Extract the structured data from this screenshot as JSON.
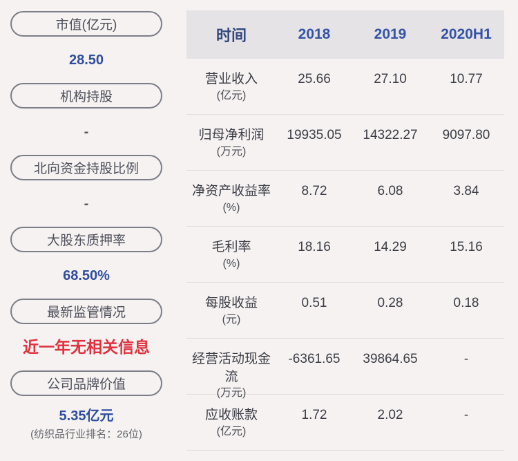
{
  "colors": {
    "page_bg": "#f5f2f1",
    "header_bg": "#e5e3e6",
    "accent_blue": "#2f4d9e",
    "alert_red": "#e0313f",
    "pill_border": "#7d7d88"
  },
  "sidebar": {
    "items": [
      {
        "label": "市值(亿元)",
        "value": "28.50",
        "style": "blue"
      },
      {
        "label": "机构持股",
        "value": "-",
        "style": "dash"
      },
      {
        "label": "北向资金持股比例",
        "value": "-",
        "style": "dash"
      },
      {
        "label": "大股东质押率",
        "value": "68.50%",
        "style": "blue"
      },
      {
        "label": "最新监管情况",
        "value": "近一年无相关信息",
        "style": "red"
      },
      {
        "label": "公司品牌价值",
        "value": "5.35亿元",
        "style": "blue",
        "note": "(纺织品行业排名：26位)"
      }
    ]
  },
  "table": {
    "header": {
      "time_label": "时间",
      "columns": [
        "2018",
        "2019",
        "2020H1"
      ]
    },
    "rows": [
      {
        "name": "营业收入",
        "unit": "(亿元)",
        "values": [
          "25.66",
          "27.10",
          "10.77"
        ]
      },
      {
        "name": "归母净利润",
        "unit": "(万元)",
        "values": [
          "19935.05",
          "14322.27",
          "9097.80"
        ]
      },
      {
        "name": "净资产收益率",
        "unit": "(%)",
        "values": [
          "8.72",
          "6.08",
          "3.84"
        ]
      },
      {
        "name": "毛利率",
        "unit": "(%)",
        "values": [
          "18.16",
          "14.29",
          "15.16"
        ]
      },
      {
        "name": "每股收益",
        "unit": "(元)",
        "values": [
          "0.51",
          "0.28",
          "0.18"
        ]
      },
      {
        "name": "经营活动现金流",
        "unit": "(万元)",
        "values": [
          "-6361.65",
          "39864.65",
          "-"
        ]
      },
      {
        "name": "应收账款",
        "unit": "(亿元)",
        "values": [
          "1.72",
          "2.02",
          "-"
        ]
      }
    ]
  }
}
